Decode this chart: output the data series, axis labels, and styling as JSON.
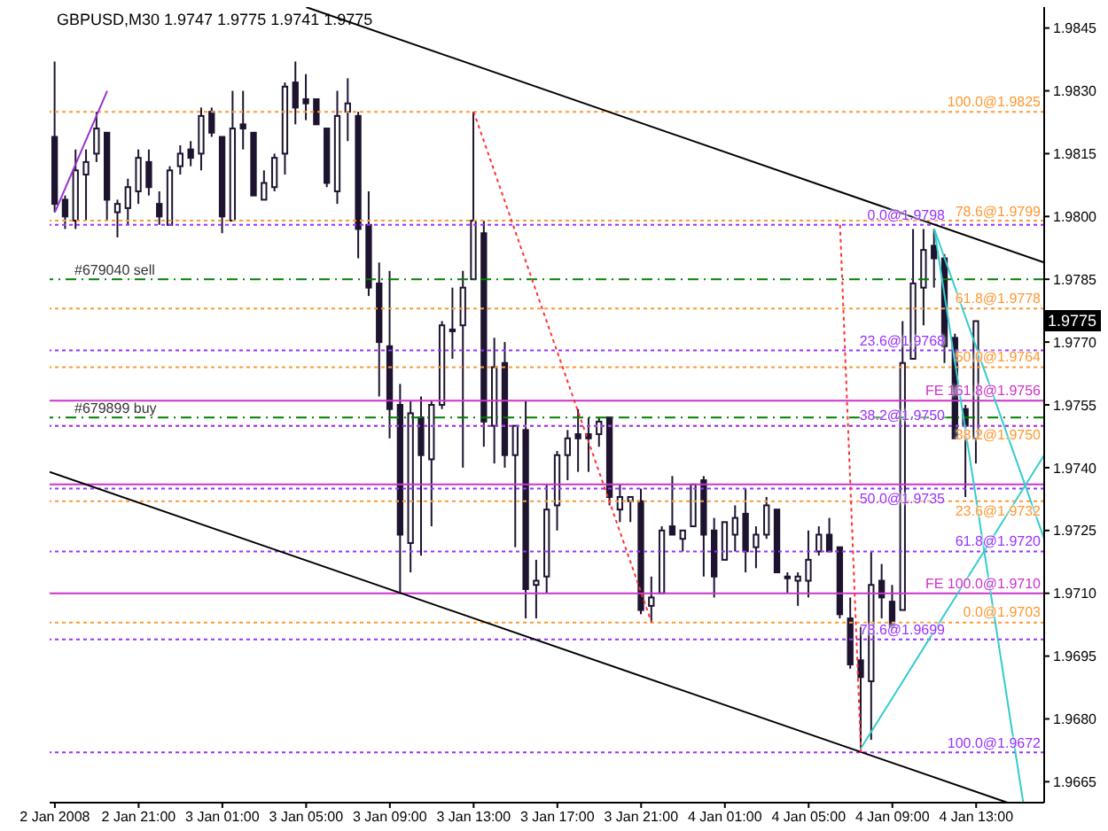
{
  "chart_data": {
    "type": "candlestick",
    "title": "GBPUSD,M30 1.9747 1.9775 1.9741 1.9775",
    "color": "#1e1430",
    "x": [
      "2008-01-02T17:00",
      "2008-01-02T17:30",
      "2008-01-02T18:00",
      "2008-01-02T18:30",
      "2008-01-02T19:00",
      "2008-01-02T19:30",
      "2008-01-02T20:00",
      "2008-01-02T20:30",
      "2008-01-02T21:00",
      "2008-01-02T21:30",
      "2008-01-02T22:00",
      "2008-01-02T22:30",
      "2008-01-02T23:00",
      "2008-01-02T23:30",
      "2008-01-03T00:00",
      "2008-01-03T00:30",
      "2008-01-03T01:00",
      "2008-01-03T01:30",
      "2008-01-03T02:00",
      "2008-01-03T02:30",
      "2008-01-03T03:00",
      "2008-01-03T03:30",
      "2008-01-03T04:00",
      "2008-01-03T04:30",
      "2008-01-03T05:00",
      "2008-01-03T05:30",
      "2008-01-03T06:00",
      "2008-01-03T06:30",
      "2008-01-03T07:00",
      "2008-01-03T07:30",
      "2008-01-03T08:00",
      "2008-01-03T08:30",
      "2008-01-03T09:00",
      "2008-01-03T09:30",
      "2008-01-03T10:00",
      "2008-01-03T10:30",
      "2008-01-03T11:00",
      "2008-01-03T11:30",
      "2008-01-03T12:00",
      "2008-01-03T12:30",
      "2008-01-03T13:00",
      "2008-01-03T13:30",
      "2008-01-03T14:00",
      "2008-01-03T14:30",
      "2008-01-03T15:00",
      "2008-01-03T15:30",
      "2008-01-03T16:00",
      "2008-01-03T16:30",
      "2008-01-03T17:00",
      "2008-01-03T17:30",
      "2008-01-03T18:00",
      "2008-01-03T18:30",
      "2008-01-03T19:00",
      "2008-01-03T19:30",
      "2008-01-03T20:00",
      "2008-01-03T20:30",
      "2008-01-03T21:00",
      "2008-01-03T21:30",
      "2008-01-03T22:00",
      "2008-01-03T22:30",
      "2008-01-03T23:00",
      "2008-01-03T23:30",
      "2008-01-04T00:00",
      "2008-01-04T00:30",
      "2008-01-04T01:00",
      "2008-01-04T01:30",
      "2008-01-04T02:00",
      "2008-01-04T02:30",
      "2008-01-04T03:00",
      "2008-01-04T03:30",
      "2008-01-04T04:00",
      "2008-01-04T04:30",
      "2008-01-04T05:00",
      "2008-01-04T05:30",
      "2008-01-04T06:00",
      "2008-01-04T06:30",
      "2008-01-04T07:00",
      "2008-01-04T07:30",
      "2008-01-04T08:00",
      "2008-01-04T08:30",
      "2008-01-04T09:00",
      "2008-01-04T09:30",
      "2008-01-04T10:00",
      "2008-01-04T10:30",
      "2008-01-04T11:00",
      "2008-01-04T11:30",
      "2008-01-04T12:00",
      "2008-01-04T12:30",
      "2008-01-04T13:00"
    ],
    "ohlc": [
      [
        1.9819,
        1.9837,
        1.9801,
        1.9803
      ],
      [
        1.9804,
        1.9805,
        1.9797,
        1.98
      ],
      [
        1.9799,
        1.9816,
        1.9797,
        1.9811
      ],
      [
        1.981,
        1.9816,
        1.9799,
        1.9813
      ],
      [
        1.9815,
        1.9825,
        1.9813,
        1.9821
      ],
      [
        1.982,
        1.982,
        1.9799,
        1.9804
      ],
      [
        1.9801,
        1.9804,
        1.9795,
        1.9803
      ],
      [
        1.9802,
        1.9809,
        1.9798,
        1.9807
      ],
      [
        1.9806,
        1.9816,
        1.9803,
        1.9814
      ],
      [
        1.9813,
        1.9816,
        1.9805,
        1.9807
      ],
      [
        1.9803,
        1.9806,
        1.9798,
        1.98
      ],
      [
        1.9798,
        1.9812,
        1.9798,
        1.9811
      ],
      [
        1.9812,
        1.9817,
        1.981,
        1.9815
      ],
      [
        1.9816,
        1.9818,
        1.9812,
        1.9814
      ],
      [
        1.9815,
        1.9826,
        1.9811,
        1.9824
      ],
      [
        1.9825,
        1.9826,
        1.9819,
        1.982
      ],
      [
        1.9819,
        1.9819,
        1.9796,
        1.98
      ],
      [
        1.9799,
        1.983,
        1.9799,
        1.9821
      ],
      [
        1.9822,
        1.983,
        1.9816,
        1.9821
      ],
      [
        1.982,
        1.982,
        1.9805,
        1.9805
      ],
      [
        1.9804,
        1.9811,
        1.9804,
        1.9808
      ],
      [
        1.9807,
        1.9815,
        1.9806,
        1.9814
      ],
      [
        1.9815,
        1.9832,
        1.981,
        1.9831
      ],
      [
        1.9832,
        1.9837,
        1.9822,
        1.9826
      ],
      [
        1.9828,
        1.9834,
        1.9823,
        1.9827
      ],
      [
        1.9828,
        1.9828,
        1.9822,
        1.9822
      ],
      [
        1.9821,
        1.9821,
        1.9807,
        1.9808
      ],
      [
        1.9806,
        1.983,
        1.9803,
        1.9824
      ],
      [
        1.9825,
        1.9833,
        1.9818,
        1.9827
      ],
      [
        1.9824,
        1.9825,
        1.979,
        1.9797
      ],
      [
        1.9798,
        1.9806,
        1.9781,
        1.9783
      ],
      [
        1.9784,
        1.9789,
        1.9757,
        1.977
      ],
      [
        1.9769,
        1.9787,
        1.9747,
        1.9754
      ],
      [
        1.9755,
        1.976,
        1.971,
        1.9724
      ],
      [
        1.9722,
        1.9756,
        1.9715,
        1.9753
      ],
      [
        1.9752,
        1.9757,
        1.9719,
        1.9743
      ],
      [
        1.9742,
        1.9756,
        1.9726,
        1.9755
      ],
      [
        1.9755,
        1.9775,
        1.9754,
        1.9774
      ],
      [
        1.9773,
        1.9783,
        1.9766,
        1.9773
      ],
      [
        1.9774,
        1.9787,
        1.974,
        1.9783
      ],
      [
        1.9785,
        1.9825,
        1.9785,
        1.9799
      ],
      [
        1.9796,
        1.9799,
        1.9745,
        1.9751
      ],
      [
        1.975,
        1.9771,
        1.9741,
        1.9764
      ],
      [
        1.9765,
        1.977,
        1.974,
        1.9743
      ],
      [
        1.9743,
        1.975,
        1.9721,
        1.975
      ],
      [
        1.9749,
        1.9756,
        1.9704,
        1.9711
      ],
      [
        1.9712,
        1.9718,
        1.9704,
        1.9713
      ],
      [
        1.9714,
        1.9736,
        1.971,
        1.973
      ],
      [
        1.9731,
        1.9744,
        1.9725,
        1.9743
      ],
      [
        1.9743,
        1.9749,
        1.9737,
        1.9747
      ],
      [
        1.9748,
        1.9754,
        1.9739,
        1.9747
      ],
      [
        1.9748,
        1.9752,
        1.9739,
        1.9747
      ],
      [
        1.9748,
        1.9752,
        1.9745,
        1.9751
      ],
      [
        1.9752,
        1.9752,
        1.9731,
        1.9733
      ],
      [
        1.973,
        1.9736,
        1.9727,
        1.9733
      ],
      [
        1.9732,
        1.9733,
        1.9727,
        1.9733
      ],
      [
        1.9732,
        1.9735,
        1.9705,
        1.9706
      ],
      [
        1.9707,
        1.9714,
        1.9703,
        1.9709
      ],
      [
        1.971,
        1.9726,
        1.971,
        1.9725
      ],
      [
        1.9726,
        1.9738,
        1.9724,
        1.9724
      ],
      [
        1.9723,
        1.9725,
        1.972,
        1.9725
      ],
      [
        1.9726,
        1.9736,
        1.9726,
        1.9736
      ],
      [
        1.9737,
        1.9738,
        1.9714,
        1.9724
      ],
      [
        1.9725,
        1.9728,
        1.9709,
        1.9714
      ],
      [
        1.9718,
        1.9727,
        1.9718,
        1.9727
      ],
      [
        1.9724,
        1.9731,
        1.972,
        1.9728
      ],
      [
        1.9729,
        1.9735,
        1.9715,
        1.972
      ],
      [
        1.9721,
        1.9726,
        1.9716,
        1.9724
      ],
      [
        1.9724,
        1.9733,
        1.9723,
        1.9731
      ],
      [
        1.973,
        1.973,
        1.9715,
        1.9715
      ],
      [
        1.9714,
        1.9715,
        1.971,
        1.9714
      ],
      [
        1.9713,
        1.9715,
        1.9707,
        1.9714
      ],
      [
        1.9713,
        1.9725,
        1.9709,
        1.9718
      ],
      [
        1.972,
        1.9726,
        1.9719,
        1.9724
      ],
      [
        1.9724,
        1.9728,
        1.972,
        1.972
      ],
      [
        1.9721,
        1.9721,
        1.9704,
        1.9705
      ],
      [
        1.9704,
        1.9709,
        1.9692,
        1.9693
      ],
      [
        1.9694,
        1.9702,
        1.9673,
        1.969
      ],
      [
        1.9689,
        1.972,
        1.9675,
        1.9712
      ],
      [
        1.9713,
        1.9717,
        1.9704,
        1.9709
      ],
      [
        1.9708,
        1.9712,
        1.9701,
        1.9702
      ],
      [
        1.9706,
        1.9775,
        1.9706,
        1.9765
      ],
      [
        1.9766,
        1.9797,
        1.9766,
        1.9784
      ],
      [
        1.9783,
        1.9797,
        1.9774,
        1.9792
      ],
      [
        1.9793,
        1.9797,
        1.9783,
        1.979
      ],
      [
        1.979,
        1.9791,
        1.9765,
        1.9769
      ],
      [
        1.9771,
        1.9772,
        1.9747,
        1.9747
      ],
      [
        1.9754,
        1.9755,
        1.9733,
        1.975
      ],
      [
        1.9747,
        1.9775,
        1.9741,
        1.9775
      ]
    ],
    "series": [
      {
        "type": "line",
        "x": [
          "2008-01-03T05:00",
          "2008-01-04T16:15"
        ],
        "values": [
          1.985,
          1.9789
        ],
        "color": "#000000",
        "line_style": "solid"
      },
      {
        "type": "line",
        "x": [
          "2008-01-02T16:45",
          "2008-01-04T14:30"
        ],
        "values": [
          1.9739,
          1.966
        ],
        "color": "#000000",
        "line_style": "solid"
      },
      {
        "type": "line",
        "x": [
          "2008-01-04T07:30",
          "2008-01-04T16:15"
        ],
        "values": [
          1.9673,
          1.9743
        ],
        "color": "#33cccc",
        "line_style": "solid"
      },
      {
        "type": "line",
        "x": [
          "2008-01-04T11:00",
          "2008-01-04T16:15"
        ],
        "values": [
          1.9797,
          1.9723
        ],
        "color": "#33cccc",
        "line_style": "solid"
      },
      {
        "type": "line",
        "x": [
          "2008-01-04T11:00",
          "2008-01-04T15:15"
        ],
        "values": [
          1.9797,
          1.966
        ],
        "color": "#33cccc",
        "line_style": "solid"
      },
      {
        "type": "line",
        "x": [
          "2008-01-03T13:00",
          "2008-01-03T21:30"
        ],
        "values": [
          1.9825,
          1.9703
        ],
        "color": "#ff3333",
        "line_style": "dotted"
      },
      {
        "type": "line",
        "x": [
          "2008-01-04T06:30",
          "2008-01-04T07:30"
        ],
        "values": [
          1.9798,
          1.9672
        ],
        "color": "#ff3333",
        "line_style": "dotted"
      },
      {
        "type": "line",
        "x": [
          "2008-01-02T17:00",
          "2008-01-02T19:30"
        ],
        "values": [
          1.9801,
          1.983
        ],
        "color": "#9933cc",
        "line_style": "solid"
      }
    ],
    "ref_lines": [
      {
        "axis": "y",
        "value": 1.9785,
        "label": "#679040 sell",
        "color": "#008000",
        "line_style": "dashed"
      },
      {
        "axis": "y",
        "value": 1.9752,
        "label": "#679899 buy",
        "color": "#008000",
        "line_style": "dashed"
      },
      {
        "axis": "y",
        "value": 1.9756,
        "label": "FE 161.8@1.9756",
        "color": "#cc33cc",
        "line_style": "solid"
      },
      {
        "axis": "y",
        "value": 1.9736,
        "color": "#cc33cc",
        "line_style": "solid"
      },
      {
        "axis": "y",
        "value": 1.971,
        "label": "FE 100.0@1.9710",
        "color": "#cc33cc",
        "line_style": "solid"
      },
      {
        "axis": "y",
        "value": 1.9825,
        "label": "100.0@1.9825",
        "color": "#ff9933",
        "line_style": "dotted"
      },
      {
        "axis": "y",
        "value": 1.9799,
        "label": "78.6@1.9799",
        "color": "#ff9933",
        "line_style": "dotted"
      },
      {
        "axis": "y",
        "value": 1.9778,
        "label": "61.8@1.9778",
        "color": "#ff9933",
        "line_style": "dotted"
      },
      {
        "axis": "y",
        "value": 1.9764,
        "label": "50.0@1.9764",
        "color": "#ff9933",
        "line_style": "dotted"
      },
      {
        "axis": "y",
        "value": 1.975,
        "label": "38.2@1.9750",
        "color": "#ff9933",
        "line_style": "dotted"
      },
      {
        "axis": "y",
        "value": 1.9732,
        "label": "23.6@1.9732",
        "color": "#ff9933",
        "line_style": "dotted"
      },
      {
        "axis": "y",
        "value": 1.9703,
        "label": "0.0@1.9703",
        "color": "#ff9933",
        "line_style": "dotted"
      },
      {
        "axis": "y",
        "value": 1.9798,
        "label": "0.0@1.9798",
        "color": "#9933ff",
        "line_style": "dotted"
      },
      {
        "axis": "y",
        "value": 1.9768,
        "label": "23.6@1.9768",
        "color": "#9933ff",
        "line_style": "dotted"
      },
      {
        "axis": "y",
        "value": 1.975,
        "label": "38.2@1.9750",
        "color": "#9933ff",
        "line_style": "dotted"
      },
      {
        "axis": "y",
        "value": 1.9735,
        "label": "50.0@1.9735",
        "color": "#9933ff",
        "line_style": "dotted"
      },
      {
        "axis": "y",
        "value": 1.972,
        "label": "61.8@1.9720",
        "color": "#9933ff",
        "line_style": "dotted"
      },
      {
        "axis": "y",
        "value": 1.9699,
        "label": "78.6@1.9699",
        "color": "#9933ff",
        "line_style": "dotted"
      },
      {
        "axis": "y",
        "value": 1.9672,
        "label": "100.0@1.9672",
        "color": "#9933ff",
        "line_style": "dotted"
      }
    ],
    "annotations": [
      {
        "text": "1.9775",
        "y": 1.9775
      }
    ],
    "xlim": [
      "2008-01-02T16:45",
      "2008-01-04T16:15"
    ],
    "xticks": [
      {
        "value": "2008-01-02T17:00",
        "label": "2 Jan 2008"
      },
      {
        "value": "2008-01-02T21:00",
        "label": "2 Jan 21:00"
      },
      {
        "value": "2008-01-03T01:00",
        "label": "3 Jan 01:00"
      },
      {
        "value": "2008-01-03T05:00",
        "label": "3 Jan 05:00"
      },
      {
        "value": "2008-01-03T09:00",
        "label": "3 Jan 09:00"
      },
      {
        "value": "2008-01-03T13:00",
        "label": "3 Jan 13:00"
      },
      {
        "value": "2008-01-03T17:00",
        "label": "3 Jan 17:00"
      },
      {
        "value": "2008-01-03T21:00",
        "label": "3 Jan 21:00"
      },
      {
        "value": "2008-01-04T01:00",
        "label": "4 Jan 01:00"
      },
      {
        "value": "2008-01-04T05:00",
        "label": "4 Jan 05:00"
      },
      {
        "value": "2008-01-04T09:00",
        "label": "4 Jan 09:00"
      },
      {
        "value": "2008-01-04T13:00",
        "label": "4 Jan 13:00"
      }
    ],
    "ylim": [
      1.966,
      1.985
    ],
    "yticks": [
      1.9665,
      {
        "value": 1.968,
        "label": "1.9680"
      },
      1.9695,
      {
        "value": 1.971,
        "label": "1.9710"
      },
      1.9725,
      {
        "value": 1.974,
        "label": "1.9740"
      },
      1.9755,
      {
        "value": 1.977,
        "label": "1.9770"
      },
      1.9785,
      {
        "value": 1.98,
        "label": "1.9800"
      },
      1.9815,
      {
        "value": 1.983,
        "label": "1.9830"
      },
      1.9845
    ]
  }
}
